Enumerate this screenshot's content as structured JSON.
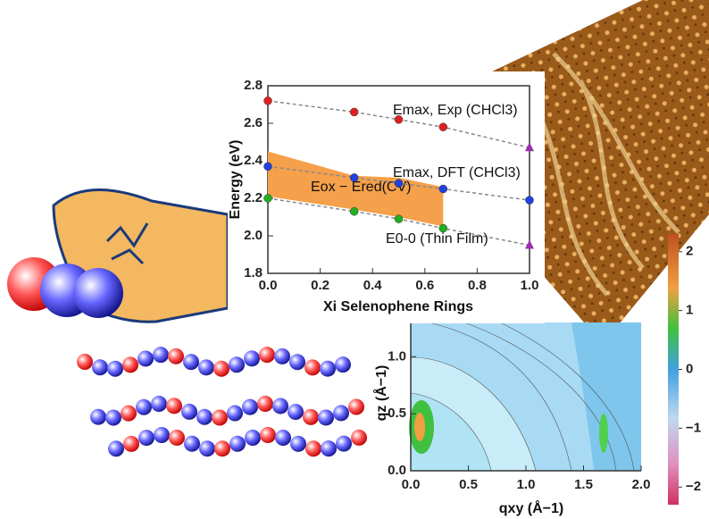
{
  "chart_data": [
    {
      "type": "line",
      "xlabel": "Xi Selenophene Rings",
      "ylabel": "Energy (eV)",
      "xlim": [
        0,
        1
      ],
      "xticks": [
        {
          "value": 0,
          "label": "0.0"
        },
        0.2,
        0.4,
        0.6,
        0.8,
        {
          "value": 1,
          "label": "1.0"
        }
      ],
      "ylim": [
        1.8,
        2.8
      ],
      "yticks": [
        1.8,
        {
          "value": 2,
          "label": "2.0"
        },
        2.2,
        2.4,
        2.6,
        2.8
      ],
      "band": {
        "name": "Eox − Ered(CV)",
        "color": "#f5a04a",
        "x": [
          0,
          0.33,
          0.5,
          0.67
        ],
        "upper": [
          2.45,
          2.32,
          2.31,
          2.26
        ],
        "lower": [
          2.21,
          2.14,
          2.1,
          2.05
        ]
      },
      "series": [
        {
          "name": "Emax, Exp (CHCl3)",
          "x": [
            0,
            0.33,
            0.5,
            0.67,
            1
          ],
          "values": [
            2.72,
            2.66,
            2.62,
            2.58,
            2.47
          ],
          "colors": [
            "#e02020",
            "#e02020",
            "#e02020",
            "#e02020",
            "#9b2fae"
          ],
          "markers": [
            "circle",
            "circle",
            "circle",
            "circle",
            "triangle"
          ]
        },
        {
          "name": "Emax, DFT (CHCl3)",
          "x": [
            0,
            0.33,
            0.5,
            0.67,
            1
          ],
          "values": [
            2.37,
            2.31,
            2.28,
            2.25,
            2.19
          ],
          "colors": [
            "#2040e0",
            "#2040e0",
            "#2040e0",
            "#2040e0",
            "#2040e0"
          ],
          "markers": [
            "circle",
            "circle",
            "circle",
            "circle",
            "circle"
          ]
        },
        {
          "name": "E0-0 (Thin Film)",
          "x": [
            0,
            0.33,
            0.5,
            0.67,
            1
          ],
          "values": [
            2.2,
            2.13,
            2.09,
            2.04,
            1.95
          ],
          "colors": [
            "#20b020",
            "#20b020",
            "#20b020",
            "#20b020",
            "#9b2fae"
          ],
          "markers": [
            "circle",
            "circle",
            "circle",
            "circle",
            "triangle"
          ]
        }
      ]
    },
    {
      "type": "contour",
      "xlabel": "qxy (Å−1)",
      "ylabel": "qz (Å−1)",
      "xlim": [
        0,
        2
      ],
      "xticks": [
        {
          "value": 0,
          "label": "0.0"
        },
        0.5,
        {
          "value": 1,
          "label": "1.0"
        },
        1.5,
        {
          "value": 2,
          "label": "2.0"
        }
      ],
      "ylim": [
        0,
        1.3
      ],
      "yticks": [
        {
          "value": 0,
          "label": "0.0"
        },
        0.5,
        {
          "value": 1,
          "label": "1.0"
        }
      ],
      "clim": [
        -2.3,
        2.3
      ],
      "cticks": [
        2,
        1,
        0,
        {
          "value": -1,
          "label": "−1"
        },
        {
          "value": -2,
          "label": "−2"
        }
      ]
    }
  ]
}
